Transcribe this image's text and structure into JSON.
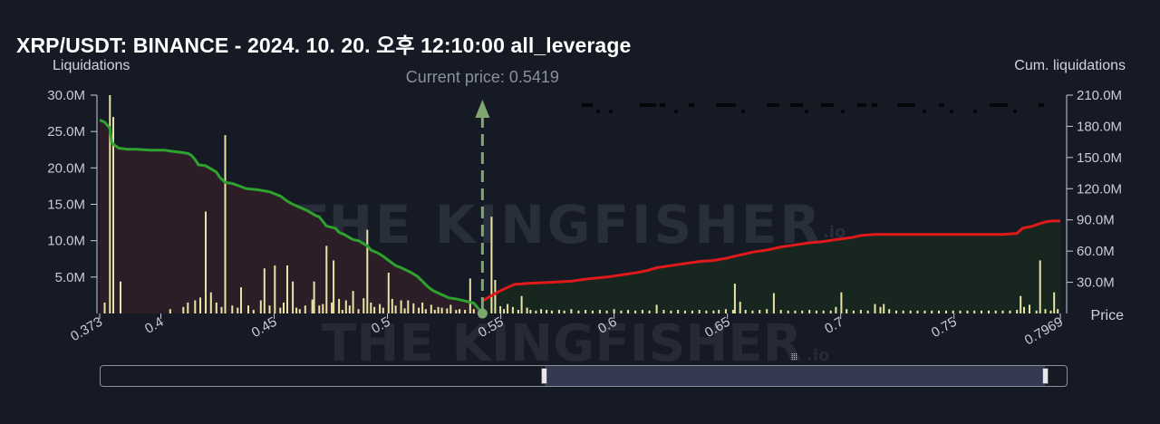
{
  "title": "XRP/USDT: BINANCE - 2024. 10. 20. 오후 12:10:00 all_leverage",
  "colors": {
    "background": "#161a25",
    "bars": "#e9e4a6",
    "left_line": "#2ea22e",
    "right_line": "#e01a1a",
    "left_fill": "#2c1d26",
    "right_fill": "#17271f",
    "current_price": "#7ea870"
  },
  "watermark": "THE KINGFISHER",
  "watermark_suffix": ".io",
  "current_price_label": "Current price: 0.5419",
  "range_slider": {
    "grip_icon": "grip-icon"
  },
  "chart_data": {
    "type": "bar",
    "current_price": 0.5419,
    "x_axis": {
      "ticks": [
        "0.373",
        "0.4",
        "0.45",
        "0.5",
        "0.55",
        "0.6",
        "0.65",
        "0.7",
        "0.75",
        "0.7969"
      ],
      "label": "Price",
      "range": [
        0.373,
        0.7969
      ]
    },
    "y_left": {
      "label": "Liquidations",
      "ticks": [
        "5.0M",
        "10.0M",
        "15.0M",
        "20.0M",
        "25.0M",
        "30.0M"
      ],
      "range": [
        0,
        30
      ]
    },
    "y_right": {
      "label": "Cum. liquidations",
      "ticks": [
        "30.0M",
        "60.0M",
        "90.0M",
        "120.0M",
        "150.0M",
        "180.0M",
        "210.0M"
      ],
      "range": [
        0,
        210
      ]
    },
    "bars": [
      {
        "x": 0.3752,
        "y": 1.5
      },
      {
        "x": 0.3775,
        "y": 30
      },
      {
        "x": 0.379,
        "y": 27
      },
      {
        "x": 0.3822,
        "y": 4.4
      },
      {
        "x": 0.4041,
        "y": 0.6
      },
      {
        "x": 0.4099,
        "y": 0.9
      },
      {
        "x": 0.4119,
        "y": 1.5
      },
      {
        "x": 0.4151,
        "y": 1.8
      },
      {
        "x": 0.4174,
        "y": 2.2
      },
      {
        "x": 0.4198,
        "y": 14.0
      },
      {
        "x": 0.4221,
        "y": 2.9
      },
      {
        "x": 0.4245,
        "y": 1.5
      },
      {
        "x": 0.4268,
        "y": 0.9
      },
      {
        "x": 0.4284,
        "y": 24.5
      },
      {
        "x": 0.4315,
        "y": 1.1
      },
      {
        "x": 0.4339,
        "y": 0.8
      },
      {
        "x": 0.4354,
        "y": 3.6
      },
      {
        "x": 0.4386,
        "y": 1.1
      },
      {
        "x": 0.4409,
        "y": 0.5
      },
      {
        "x": 0.4441,
        "y": 1.8
      },
      {
        "x": 0.4457,
        "y": 6.2
      },
      {
        "x": 0.448,
        "y": 1.1
      },
      {
        "x": 0.4503,
        "y": 6.6
      },
      {
        "x": 0.4527,
        "y": 0.8
      },
      {
        "x": 0.4542,
        "y": 1.5
      },
      {
        "x": 0.4558,
        "y": 6.6
      },
      {
        "x": 0.4582,
        "y": 4.4
      },
      {
        "x": 0.4598,
        "y": 0.8
      },
      {
        "x": 0.4613,
        "y": 0.6
      },
      {
        "x": 0.4637,
        "y": 1.1
      },
      {
        "x": 0.4668,
        "y": 1.9
      },
      {
        "x": 0.4676,
        "y": 4.4
      },
      {
        "x": 0.4699,
        "y": 1.1
      },
      {
        "x": 0.4715,
        "y": 1.3
      },
      {
        "x": 0.4731,
        "y": 9.3
      },
      {
        "x": 0.4754,
        "y": 1.5
      },
      {
        "x": 0.4762,
        "y": 7.3
      },
      {
        "x": 0.4786,
        "y": 2.0
      },
      {
        "x": 0.4801,
        "y": 0.5
      },
      {
        "x": 0.4817,
        "y": 1.8
      },
      {
        "x": 0.4833,
        "y": 1.1
      },
      {
        "x": 0.4848,
        "y": 3.1
      },
      {
        "x": 0.4872,
        "y": 0.6
      },
      {
        "x": 0.4895,
        "y": 2.1
      },
      {
        "x": 0.4911,
        "y": 11.5
      },
      {
        "x": 0.4927,
        "y": 1.5
      },
      {
        "x": 0.4942,
        "y": 0.9
      },
      {
        "x": 0.4966,
        "y": 1.3
      },
      {
        "x": 0.4981,
        "y": 0.8
      },
      {
        "x": 0.5005,
        "y": 5.6
      },
      {
        "x": 0.5021,
        "y": 2.0
      },
      {
        "x": 0.5036,
        "y": 1.1
      },
      {
        "x": 0.506,
        "y": 1.8
      },
      {
        "x": 0.5076,
        "y": 0.7
      },
      {
        "x": 0.5091,
        "y": 1.8
      },
      {
        "x": 0.5115,
        "y": 1.4
      },
      {
        "x": 0.5138,
        "y": 0.8
      },
      {
        "x": 0.5154,
        "y": 1.5
      },
      {
        "x": 0.5169,
        "y": 0.6
      },
      {
        "x": 0.5193,
        "y": 1.2
      },
      {
        "x": 0.5209,
        "y": 0.5
      },
      {
        "x": 0.5224,
        "y": 0.9
      },
      {
        "x": 0.524,
        "y": 0.8
      },
      {
        "x": 0.5263,
        "y": 0.7
      },
      {
        "x": 0.5279,
        "y": 1.2
      },
      {
        "x": 0.5303,
        "y": 0.5
      },
      {
        "x": 0.5318,
        "y": 0.6
      },
      {
        "x": 0.5342,
        "y": 0.5
      },
      {
        "x": 0.5365,
        "y": 4.8
      },
      {
        "x": 0.5381,
        "y": 0.6
      },
      {
        "x": 0.5405,
        "y": 0.5
      },
      {
        "x": 0.5459,
        "y": 13.3
      },
      {
        "x": 0.5475,
        "y": 4.6
      },
      {
        "x": 0.5498,
        "y": 1.0
      },
      {
        "x": 0.5514,
        "y": 0.6
      },
      {
        "x": 0.553,
        "y": 1.3
      },
      {
        "x": 0.5553,
        "y": 0.9
      },
      {
        "x": 0.5577,
        "y": 0.5
      },
      {
        "x": 0.5592,
        "y": 2.4
      },
      {
        "x": 0.5616,
        "y": 0.8
      },
      {
        "x": 0.5631,
        "y": 0.5
      },
      {
        "x": 0.5655,
        "y": 0.4
      },
      {
        "x": 0.5678,
        "y": 0.6
      },
      {
        "x": 0.5702,
        "y": 0.5
      },
      {
        "x": 0.5725,
        "y": 0.4
      },
      {
        "x": 0.5757,
        "y": 0.5
      },
      {
        "x": 0.578,
        "y": 0.4
      },
      {
        "x": 0.5811,
        "y": 0.6
      },
      {
        "x": 0.5843,
        "y": 0.4
      },
      {
        "x": 0.5874,
        "y": 0.5
      },
      {
        "x": 0.5905,
        "y": 0.4
      },
      {
        "x": 0.5937,
        "y": 0.5
      },
      {
        "x": 0.5968,
        "y": 0.4
      },
      {
        "x": 0.6,
        "y": 0.6
      },
      {
        "x": 0.6031,
        "y": 0.4
      },
      {
        "x": 0.6062,
        "y": 0.5
      },
      {
        "x": 0.6094,
        "y": 0.4
      },
      {
        "x": 0.6125,
        "y": 0.5
      },
      {
        "x": 0.6156,
        "y": 0.4
      },
      {
        "x": 0.6188,
        "y": 1.2
      },
      {
        "x": 0.6219,
        "y": 0.5
      },
      {
        "x": 0.6251,
        "y": 0.4
      },
      {
        "x": 0.6282,
        "y": 0.5
      },
      {
        "x": 0.6313,
        "y": 0.4
      },
      {
        "x": 0.6345,
        "y": 0.4
      },
      {
        "x": 0.6376,
        "y": 0.5
      },
      {
        "x": 0.6407,
        "y": 0.4
      },
      {
        "x": 0.6439,
        "y": 0.4
      },
      {
        "x": 0.6462,
        "y": 0.5
      },
      {
        "x": 0.6493,
        "y": 0.6
      },
      {
        "x": 0.6525,
        "y": 0.5
      },
      {
        "x": 0.6533,
        "y": 4.1
      },
      {
        "x": 0.6556,
        "y": 1.6
      },
      {
        "x": 0.658,
        "y": 0.5
      },
      {
        "x": 0.6611,
        "y": 0.4
      },
      {
        "x": 0.6642,
        "y": 0.5
      },
      {
        "x": 0.6674,
        "y": 0.6
      },
      {
        "x": 0.6705,
        "y": 2.8
      },
      {
        "x": 0.6736,
        "y": 0.5
      },
      {
        "x": 0.6768,
        "y": 0.4
      },
      {
        "x": 0.6799,
        "y": 0.4
      },
      {
        "x": 0.683,
        "y": 0.4
      },
      {
        "x": 0.6862,
        "y": 0.5
      },
      {
        "x": 0.6893,
        "y": 0.4
      },
      {
        "x": 0.6924,
        "y": 0.4
      },
      {
        "x": 0.6956,
        "y": 0.4
      },
      {
        "x": 0.6979,
        "y": 0.9
      },
      {
        "x": 0.7003,
        "y": 2.9
      },
      {
        "x": 0.7026,
        "y": 0.6
      },
      {
        "x": 0.7057,
        "y": 0.4
      },
      {
        "x": 0.7089,
        "y": 0.5
      },
      {
        "x": 0.712,
        "y": 0.4
      },
      {
        "x": 0.7151,
        "y": 1.3
      },
      {
        "x": 0.7175,
        "y": 0.9
      },
      {
        "x": 0.719,
        "y": 1.3
      },
      {
        "x": 0.7214,
        "y": 0.6
      },
      {
        "x": 0.7245,
        "y": 0.4
      },
      {
        "x": 0.7276,
        "y": 0.4
      },
      {
        "x": 0.7308,
        "y": 0.4
      },
      {
        "x": 0.7339,
        "y": 0.4
      },
      {
        "x": 0.7371,
        "y": 0.4
      },
      {
        "x": 0.7402,
        "y": 0.4
      },
      {
        "x": 0.7433,
        "y": 0.4
      },
      {
        "x": 0.7465,
        "y": 0.4
      },
      {
        "x": 0.7496,
        "y": 0.4
      },
      {
        "x": 0.7527,
        "y": 0.4
      },
      {
        "x": 0.7559,
        "y": 0.4
      },
      {
        "x": 0.759,
        "y": 0.4
      },
      {
        "x": 0.7621,
        "y": 0.4
      },
      {
        "x": 0.7653,
        "y": 0.4
      },
      {
        "x": 0.7684,
        "y": 0.4
      },
      {
        "x": 0.7715,
        "y": 0.4
      },
      {
        "x": 0.7747,
        "y": 0.4
      },
      {
        "x": 0.7778,
        "y": 0.5
      },
      {
        "x": 0.7794,
        "y": 2.4
      },
      {
        "x": 0.7809,
        "y": 0.9
      },
      {
        "x": 0.7833,
        "y": 1.2
      },
      {
        "x": 0.7864,
        "y": 0.4
      },
      {
        "x": 0.788,
        "y": 7.3
      },
      {
        "x": 0.7903,
        "y": 0.6
      },
      {
        "x": 0.7927,
        "y": 0.4
      },
      {
        "x": 0.7942,
        "y": 2.9
      },
      {
        "x": 0.7958,
        "y": 0.6
      }
    ],
    "cum_left": [
      [
        0.373,
        186
      ],
      [
        0.3752,
        184
      ],
      [
        0.3775,
        178
      ],
      [
        0.3783,
        164
      ],
      [
        0.3814,
        159
      ],
      [
        0.3853,
        158
      ],
      [
        0.3892,
        158
      ],
      [
        0.3955,
        157
      ],
      [
        0.4018,
        157
      ],
      [
        0.4049,
        156
      ],
      [
        0.4088,
        155
      ],
      [
        0.4119,
        154
      ],
      [
        0.4135,
        152
      ],
      [
        0.4151,
        148
      ],
      [
        0.4166,
        143
      ],
      [
        0.4198,
        142
      ],
      [
        0.4229,
        138
      ],
      [
        0.4245,
        136
      ],
      [
        0.426,
        131
      ],
      [
        0.4284,
        126
      ],
      [
        0.4315,
        125
      ],
      [
        0.4354,
        122
      ],
      [
        0.4378,
        120
      ],
      [
        0.4425,
        119
      ],
      [
        0.448,
        117
      ],
      [
        0.4503,
        115
      ],
      [
        0.4527,
        113
      ],
      [
        0.4558,
        108
      ],
      [
        0.4582,
        105
      ],
      [
        0.4613,
        102
      ],
      [
        0.4645,
        99
      ],
      [
        0.4684,
        94
      ],
      [
        0.4699,
        93
      ],
      [
        0.4731,
        84
      ],
      [
        0.477,
        82
      ],
      [
        0.4786,
        78
      ],
      [
        0.4809,
        76
      ],
      [
        0.4848,
        71
      ],
      [
        0.4872,
        70
      ],
      [
        0.4911,
        65
      ],
      [
        0.4927,
        61
      ],
      [
        0.4958,
        58
      ],
      [
        0.4981,
        55
      ],
      [
        0.5005,
        51
      ],
      [
        0.5036,
        46
      ],
      [
        0.506,
        44
      ],
      [
        0.5099,
        40
      ],
      [
        0.513,
        36
      ],
      [
        0.5154,
        31
      ],
      [
        0.5177,
        26
      ],
      [
        0.5201,
        22
      ],
      [
        0.524,
        18
      ],
      [
        0.5271,
        15
      ],
      [
        0.5303,
        14
      ],
      [
        0.5342,
        12
      ],
      [
        0.5381,
        10
      ],
      [
        0.5419,
        0
      ]
    ],
    "cum_right": [
      [
        0.5419,
        12
      ],
      [
        0.545,
        16
      ],
      [
        0.549,
        21
      ],
      [
        0.5529,
        25
      ],
      [
        0.5561,
        28
      ],
      [
        0.5623,
        29
      ],
      [
        0.5718,
        30
      ],
      [
        0.5811,
        31
      ],
      [
        0.5874,
        33
      ],
      [
        0.5968,
        35
      ],
      [
        0.6031,
        37
      ],
      [
        0.6094,
        39
      ],
      [
        0.6141,
        41
      ],
      [
        0.6188,
        44
      ],
      [
        0.6251,
        46
      ],
      [
        0.6313,
        48
      ],
      [
        0.6376,
        50
      ],
      [
        0.6439,
        51
      ],
      [
        0.6493,
        53
      ],
      [
        0.6552,
        56
      ],
      [
        0.6611,
        59
      ],
      [
        0.6674,
        61
      ],
      [
        0.6736,
        64
      ],
      [
        0.6799,
        66
      ],
      [
        0.6862,
        68
      ],
      [
        0.6916,
        69
      ],
      [
        0.6979,
        71
      ],
      [
        0.7049,
        73
      ],
      [
        0.7089,
        75
      ],
      [
        0.7151,
        76
      ],
      [
        0.7214,
        76
      ],
      [
        0.7339,
        76
      ],
      [
        0.7465,
        76
      ],
      [
        0.759,
        76
      ],
      [
        0.7715,
        76
      ],
      [
        0.7778,
        77
      ],
      [
        0.7803,
        82
      ],
      [
        0.7848,
        84
      ],
      [
        0.7872,
        86
      ],
      [
        0.7903,
        88
      ],
      [
        0.7934,
        89
      ],
      [
        0.7969,
        89
      ]
    ]
  }
}
